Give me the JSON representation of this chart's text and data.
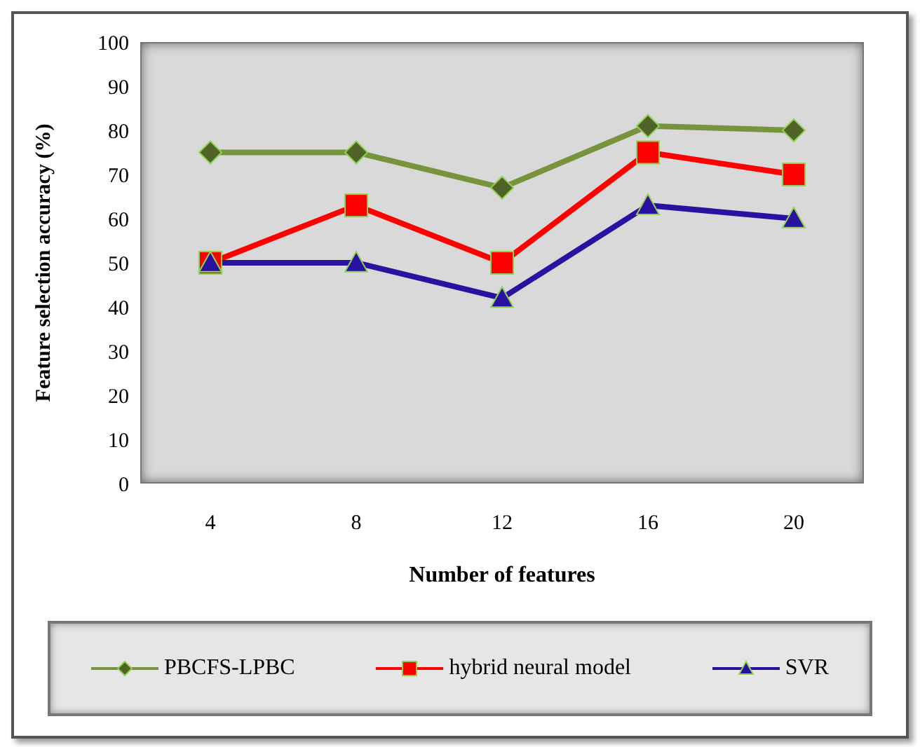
{
  "chart_data": {
    "type": "line",
    "xlabel": "Number of features",
    "ylabel": "Feature selection accuracy (%)",
    "categories": [
      "4",
      "8",
      "12",
      "16",
      "20"
    ],
    "series": [
      {
        "name": "PBCFS-LPBC",
        "color": "#77933c",
        "marker": "diamond",
        "values": [
          75,
          75,
          67,
          81,
          80
        ]
      },
      {
        "name": "hybrid neural model",
        "color": "#ff0000",
        "marker": "square",
        "values": [
          50,
          63,
          50,
          75,
          70
        ]
      },
      {
        "name": "SVR",
        "color": "#2a12a0",
        "marker": "triangle",
        "values": [
          50,
          50,
          42,
          63,
          60
        ]
      }
    ],
    "ylim": [
      0,
      100
    ],
    "yticks": [
      0,
      10,
      20,
      30,
      40,
      50,
      60,
      70,
      80,
      90,
      100
    ],
    "grid": false,
    "legend": "bottom"
  }
}
